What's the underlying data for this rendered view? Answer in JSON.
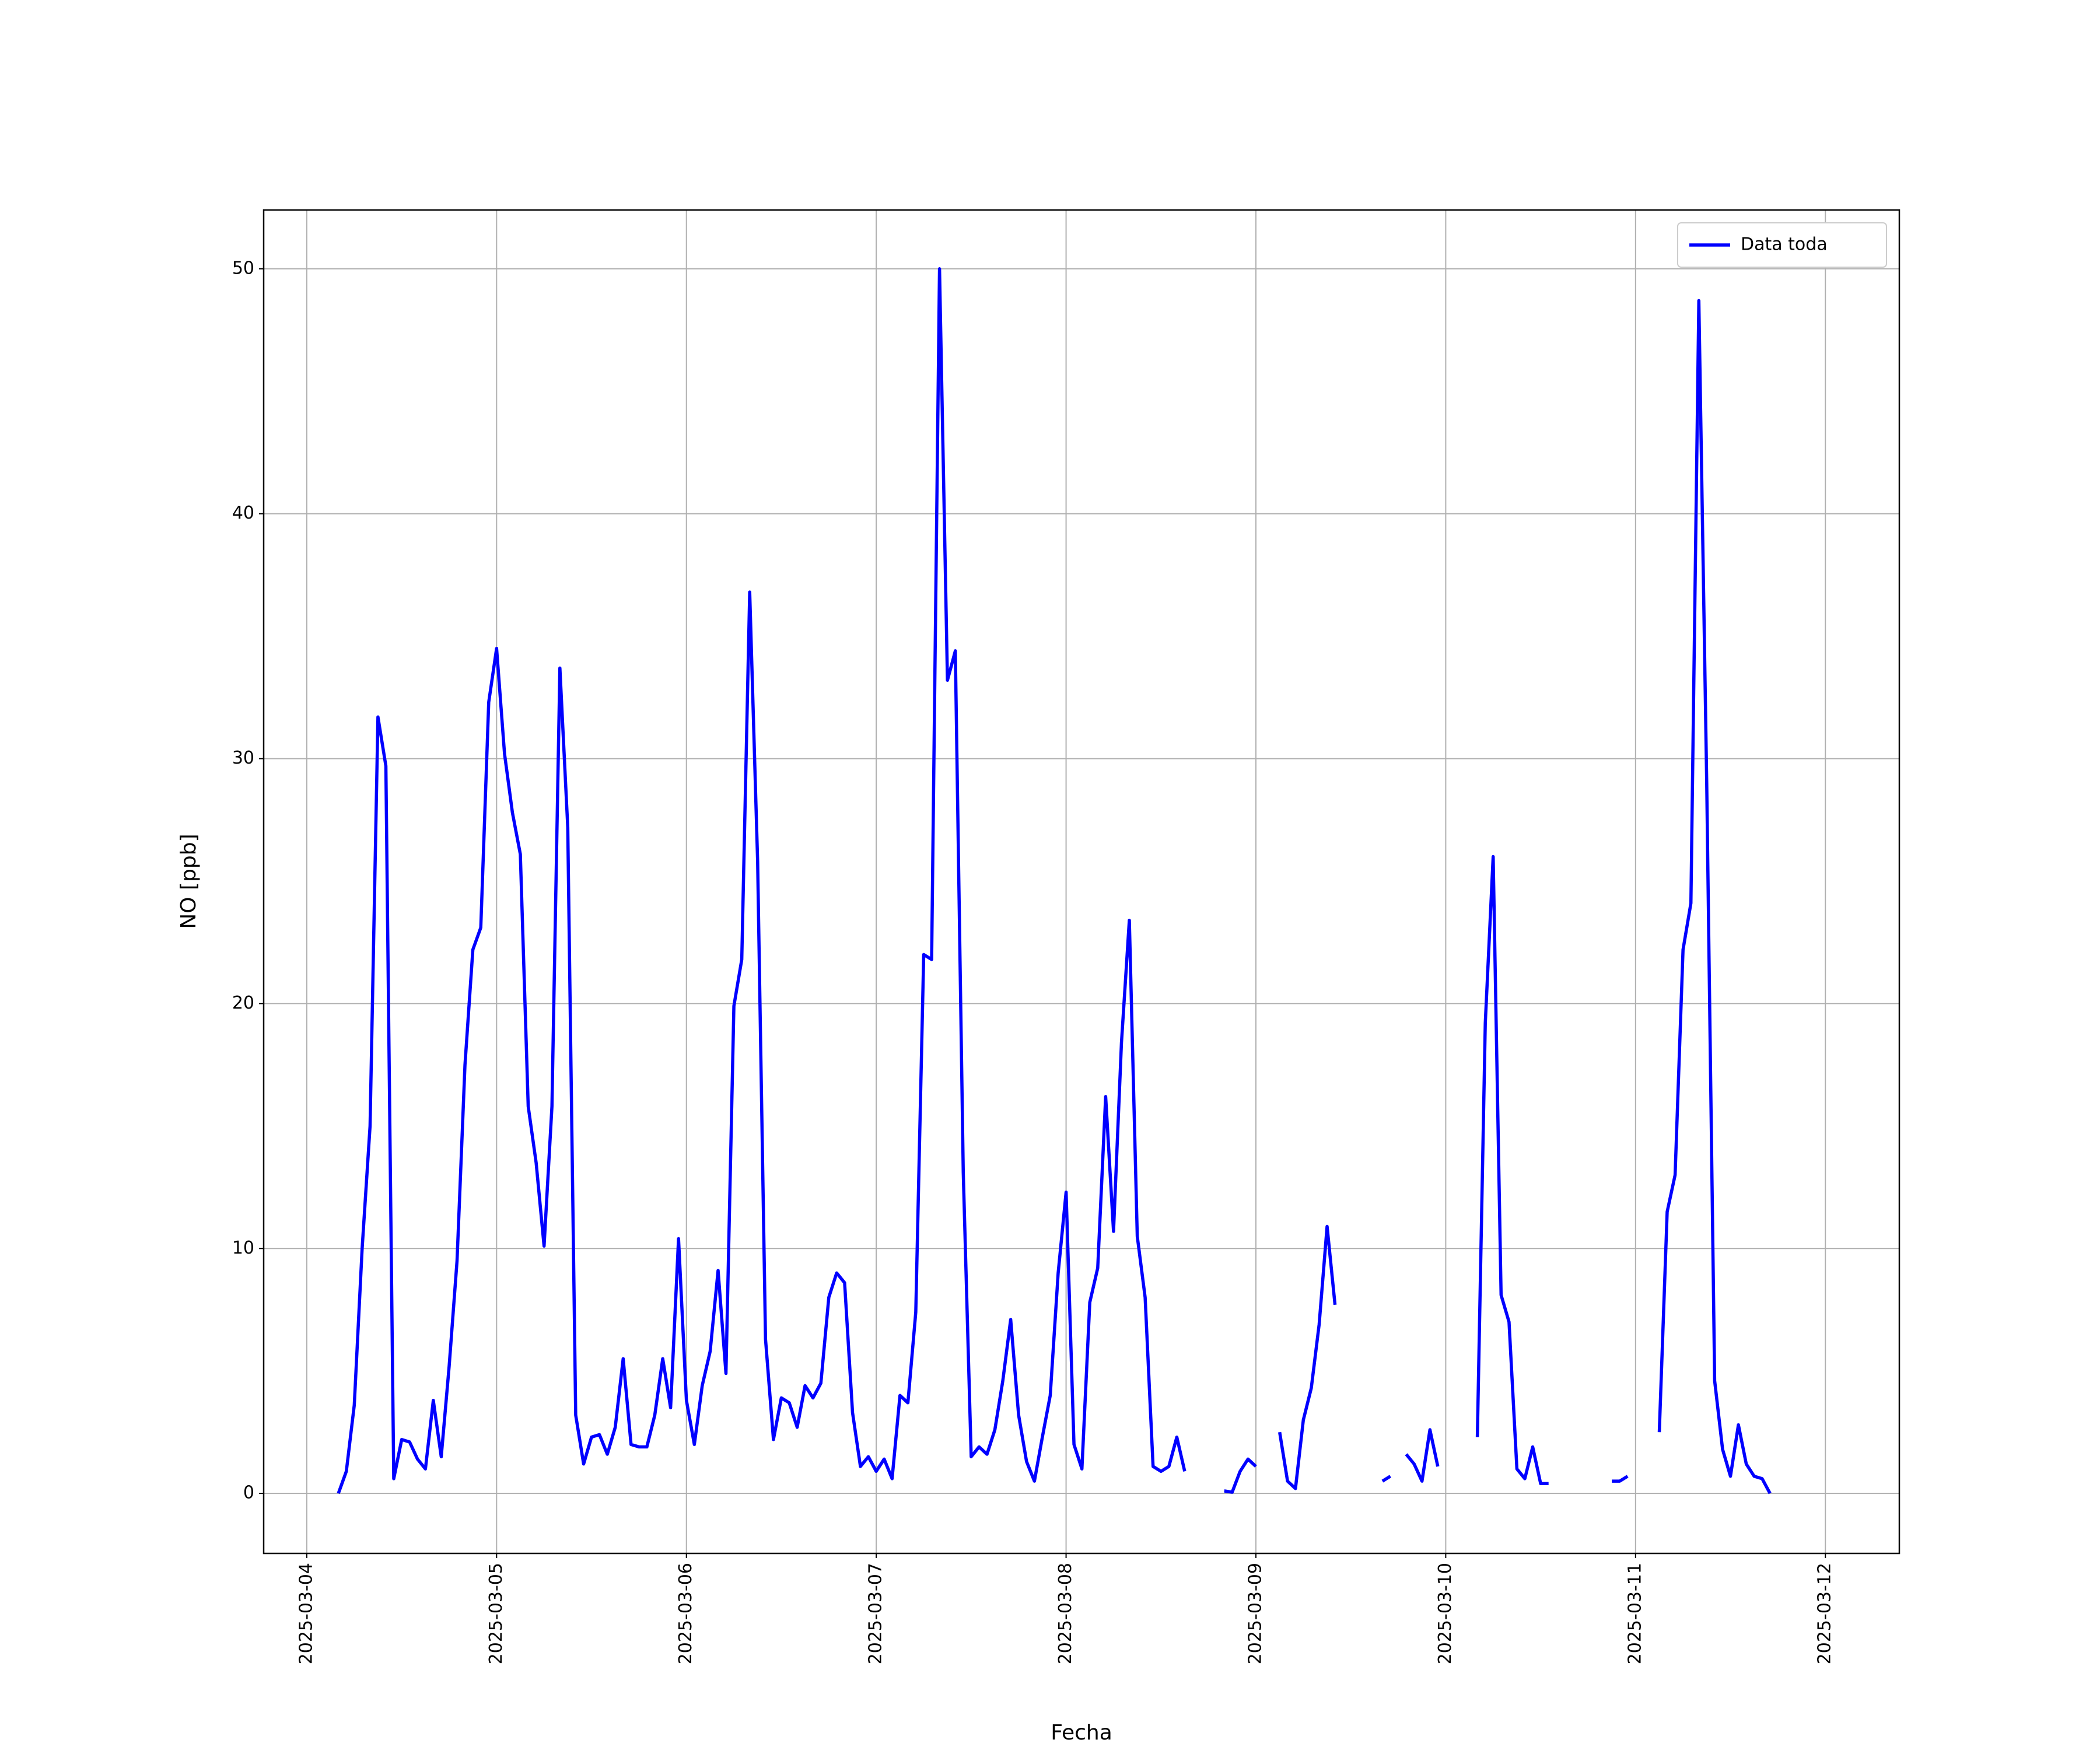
{
  "chart_data": {
    "type": "line",
    "x_label": "Fecha",
    "y_label": "NO [ppb]",
    "x": [
      "2025-03-04 04:00",
      "2025-03-04 05:00",
      "2025-03-04 06:00",
      "2025-03-04 07:00",
      "2025-03-04 08:00",
      "2025-03-04 09:00",
      "2025-03-04 10:00",
      "2025-03-04 11:00",
      "2025-03-04 12:00",
      "2025-03-04 13:00",
      "2025-03-04 14:00",
      "2025-03-04 15:00",
      "2025-03-04 16:00",
      "2025-03-04 17:00",
      "2025-03-04 18:00",
      "2025-03-04 19:00",
      "2025-03-04 20:00",
      "2025-03-04 21:00",
      "2025-03-04 22:00",
      "2025-03-04 23:00",
      "2025-03-05 00:00",
      "2025-03-05 01:00",
      "2025-03-05 02:00",
      "2025-03-05 03:00",
      "2025-03-05 04:00",
      "2025-03-05 05:00",
      "2025-03-05 06:00",
      "2025-03-05 07:00",
      "2025-03-05 08:00",
      "2025-03-05 09:00",
      "2025-03-05 10:00",
      "2025-03-05 11:00",
      "2025-03-05 12:00",
      "2025-03-05 13:00",
      "2025-03-05 14:00",
      "2025-03-05 15:00",
      "2025-03-05 16:00",
      "2025-03-05 17:00",
      "2025-03-05 18:00",
      "2025-03-05 19:00",
      "2025-03-05 20:00",
      "2025-03-05 21:00",
      "2025-03-05 22:00",
      "2025-03-05 23:00",
      "2025-03-06 00:00",
      "2025-03-06 01:00",
      "2025-03-06 02:00",
      "2025-03-06 03:00",
      "2025-03-06 04:00",
      "2025-03-06 05:00",
      "2025-03-06 06:00",
      "2025-03-06 07:00",
      "2025-03-06 08:00",
      "2025-03-06 09:00",
      "2025-03-06 10:00",
      "2025-03-06 11:00",
      "2025-03-06 12:00",
      "2025-03-06 13:00",
      "2025-03-06 14:00",
      "2025-03-06 15:00",
      "2025-03-06 16:00",
      "2025-03-06 17:00",
      "2025-03-06 18:00",
      "2025-03-06 19:00",
      "2025-03-06 20:00",
      "2025-03-06 21:00",
      "2025-03-06 22:00",
      "2025-03-06 23:00",
      "2025-03-07 00:00",
      "2025-03-07 01:00",
      "2025-03-07 02:00",
      "2025-03-07 03:00",
      "2025-03-07 04:00",
      "2025-03-07 05:00",
      "2025-03-07 06:00",
      "2025-03-07 07:00",
      "2025-03-07 08:00",
      "2025-03-07 09:00",
      "2025-03-07 10:00",
      "2025-03-07 11:00",
      "2025-03-07 12:00",
      "2025-03-07 13:00",
      "2025-03-07 14:00",
      "2025-03-07 15:00",
      "2025-03-07 16:00",
      "2025-03-07 17:00",
      "2025-03-07 18:00",
      "2025-03-07 19:00",
      "2025-03-07 20:00",
      "2025-03-07 21:00",
      "2025-03-07 22:00",
      "2025-03-07 23:00",
      "2025-03-08 00:00",
      "2025-03-08 01:00",
      "2025-03-08 02:00",
      "2025-03-08 03:00",
      "2025-03-08 04:00",
      "2025-03-08 05:00",
      "2025-03-08 06:00",
      "2025-03-08 07:00",
      "2025-03-08 08:00",
      "2025-03-08 09:00",
      "2025-03-08 10:00",
      "2025-03-08 11:00",
      "2025-03-08 12:00",
      "2025-03-08 13:00",
      "2025-03-08 14:00",
      "2025-03-08 15:00",
      "2025-03-08 16:00",
      "2025-03-08 17:00",
      "2025-03-08 18:00",
      "2025-03-08 19:00",
      "2025-03-08 20:00",
      "2025-03-08 21:00",
      "2025-03-08 22:00",
      "2025-03-08 23:00",
      "2025-03-09 00:00",
      "2025-03-09 01:00",
      "2025-03-09 02:00",
      "2025-03-09 03:00",
      "2025-03-09 04:00",
      "2025-03-09 05:00",
      "2025-03-09 06:00",
      "2025-03-09 07:00",
      "2025-03-09 08:00",
      "2025-03-09 09:00",
      "2025-03-09 10:00",
      "2025-03-09 11:00",
      "2025-03-09 12:00",
      "2025-03-09 13:00",
      "2025-03-09 14:00",
      "2025-03-09 15:00",
      "2025-03-09 16:00",
      "2025-03-09 17:00",
      "2025-03-09 18:00",
      "2025-03-09 19:00",
      "2025-03-09 20:00",
      "2025-03-09 21:00",
      "2025-03-09 22:00",
      "2025-03-09 23:00",
      "2025-03-10 00:00",
      "2025-03-10 01:00",
      "2025-03-10 02:00",
      "2025-03-10 03:00",
      "2025-03-10 04:00",
      "2025-03-10 05:00",
      "2025-03-10 06:00",
      "2025-03-10 07:00",
      "2025-03-10 08:00",
      "2025-03-10 09:00",
      "2025-03-10 10:00",
      "2025-03-10 11:00",
      "2025-03-10 12:00",
      "2025-03-10 13:00",
      "2025-03-10 14:00",
      "2025-03-10 15:00",
      "2025-03-10 16:00",
      "2025-03-10 17:00",
      "2025-03-10 18:00",
      "2025-03-10 19:00",
      "2025-03-10 20:00",
      "2025-03-10 21:00",
      "2025-03-10 22:00",
      "2025-03-10 23:00",
      "2025-03-11 00:00",
      "2025-03-11 01:00",
      "2025-03-11 02:00",
      "2025-03-11 03:00",
      "2025-03-11 04:00",
      "2025-03-11 05:00",
      "2025-03-11 06:00",
      "2025-03-11 07:00",
      "2025-03-11 08:00",
      "2025-03-11 09:00",
      "2025-03-11 10:00",
      "2025-03-11 11:00",
      "2025-03-11 12:00",
      "2025-03-11 13:00",
      "2025-03-11 14:00",
      "2025-03-11 15:00",
      "2025-03-11 16:00",
      "2025-03-11 17:00"
    ],
    "series": [
      {
        "name": "Data toda",
        "color": "#0000ff",
        "values": [
          0,
          0.9,
          3.6,
          10,
          15,
          31.7,
          29.7,
          0.6,
          2.2,
          2.1,
          1.4,
          1.0,
          3.8,
          1.5,
          5.2,
          9.5,
          17.5,
          22.2,
          23.1,
          32.3,
          34.5,
          30.2,
          27.8,
          26.1,
          15.8,
          13.5,
          10.1,
          15.8,
          33.7,
          27.2,
          3.2,
          1.2,
          2.3,
          2.4,
          1.6,
          2.7,
          5.5,
          2.0,
          1.9,
          1.9,
          3.2,
          5.5,
          3.5,
          10.4,
          3.8,
          2.0,
          4.4,
          5.8,
          9.1,
          4.9,
          19.9,
          21.8,
          36.8,
          25.8,
          6.3,
          2.2,
          3.9,
          3.7,
          2.7,
          4.4,
          3.9,
          4.5,
          8.0,
          9.0,
          8.6,
          3.3,
          1.1,
          1.5,
          0.9,
          1.4,
          0.6,
          4.0,
          3.7,
          7.4,
          22.0,
          21.8,
          50.0,
          33.2,
          34.4,
          13.1,
          1.5,
          1.9,
          1.6,
          2.6,
          4.6,
          7.1,
          3.2,
          1.3,
          0.5,
          2.3,
          4.0,
          9.0,
          12.3,
          2.0,
          1.0,
          7.8,
          9.2,
          16.2,
          10.7,
          18.4,
          23.4,
          10.5,
          8.0,
          1.1,
          0.9,
          1.1,
          2.3,
          0.9,
          null,
          null,
          null,
          null,
          0.1,
          0.05,
          0.9,
          1.4,
          1.1,
          null,
          null,
          2.5,
          0.5,
          0.2,
          3.0,
          4.3,
          6.9,
          10.9,
          7.7,
          null,
          null,
          null,
          null,
          null,
          0.5,
          0.7,
          null,
          1.6,
          1.2,
          0.5,
          2.6,
          1.1,
          null,
          null,
          null,
          null,
          2.3,
          19.2,
          26.0,
          8.1,
          7.0,
          1.0,
          0.6,
          1.9,
          0.4,
          0.4,
          null,
          null,
          null,
          null,
          null,
          null,
          null,
          0.5,
          0.5,
          0.7,
          null,
          null,
          null,
          2.5,
          11.5,
          13.0,
          22.2,
          24.1,
          48.7,
          29.0,
          4.6,
          1.8,
          0.7,
          2.8,
          1.2,
          0.7,
          0.6,
          0.0
        ]
      }
    ],
    "xlim": [
      "2025-03-03 18:33",
      "2025-03-12 09:21"
    ],
    "xticks": [
      "2025-03-04",
      "2025-03-05",
      "2025-03-06",
      "2025-03-07",
      "2025-03-08",
      "2025-03-09",
      "2025-03-10",
      "2025-03-11",
      "2025-03-12"
    ],
    "ylim": [
      -2.45,
      52.4
    ],
    "yticks": [
      0,
      10,
      20,
      30,
      40,
      50
    ],
    "grid": true,
    "legend": "upper right"
  }
}
